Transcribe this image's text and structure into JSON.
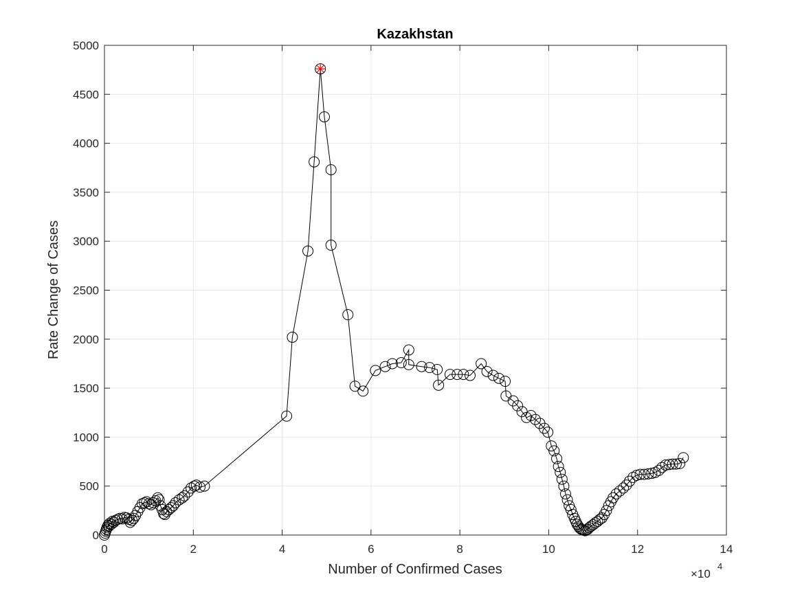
{
  "chart_data": {
    "type": "scatter",
    "title": "Kazakhstan",
    "xlabel": "Number of Confirmed Cases",
    "ylabel": "Rate Change of Cases",
    "x_exponent_label": "×10",
    "x_exponent_power": "4",
    "xlim": [
      0,
      140000
    ],
    "ylim": [
      0,
      5000
    ],
    "x_ticks": [
      0,
      20000,
      40000,
      60000,
      80000,
      100000,
      120000,
      140000
    ],
    "x_tick_labels": [
      "0",
      "2",
      "4",
      "6",
      "8",
      "10",
      "12",
      "14"
    ],
    "y_ticks": [
      0,
      500,
      1000,
      1500,
      2000,
      2500,
      3000,
      3500,
      4000,
      4500,
      5000
    ],
    "y_tick_labels": [
      "0",
      "500",
      "1000",
      "1500",
      "2000",
      "2500",
      "3000",
      "3500",
      "4000",
      "4500",
      "5000"
    ],
    "grid": true,
    "colors": {
      "series": "#000000",
      "highlight": "#ff0000",
      "grid": "#e6e6e6",
      "axis": "#262626"
    },
    "highlight_point": {
      "x": 48600,
      "y": 4760,
      "marker": "asterisk"
    },
    "series": [
      {
        "marker": "circle",
        "points": [
          [
            0,
            0
          ],
          [
            150,
            20
          ],
          [
            300,
            40
          ],
          [
            450,
            60
          ],
          [
            600,
            80
          ],
          [
            800,
            100
          ],
          [
            1000,
            90
          ],
          [
            1200,
            120
          ],
          [
            1500,
            110
          ],
          [
            1800,
            140
          ],
          [
            2100,
            130
          ],
          [
            2500,
            150
          ],
          [
            3000,
            160
          ],
          [
            3500,
            170
          ],
          [
            4000,
            165
          ],
          [
            4500,
            180
          ],
          [
            5000,
            175
          ],
          [
            5500,
            160
          ],
          [
            5800,
            130
          ],
          [
            6200,
            150
          ],
          [
            6600,
            170
          ],
          [
            7000,
            200
          ],
          [
            7500,
            240
          ],
          [
            8000,
            280
          ],
          [
            8500,
            320
          ],
          [
            9000,
            330
          ],
          [
            9500,
            340
          ],
          [
            10000,
            320
          ],
          [
            10500,
            310
          ],
          [
            11000,
            330
          ],
          [
            11500,
            350
          ],
          [
            12000,
            380
          ],
          [
            12300,
            360
          ],
          [
            12600,
            300
          ],
          [
            13000,
            260
          ],
          [
            13300,
            220
          ],
          [
            13600,
            210
          ],
          [
            14000,
            240
          ],
          [
            14500,
            260
          ],
          [
            15000,
            280
          ],
          [
            15500,
            300
          ],
          [
            16000,
            330
          ],
          [
            16800,
            360
          ],
          [
            17500,
            380
          ],
          [
            18000,
            400
          ],
          [
            18800,
            440
          ],
          [
            19500,
            480
          ],
          [
            20200,
            500
          ],
          [
            20700,
            510
          ],
          [
            21500,
            490
          ],
          [
            22500,
            500
          ],
          [
            41000,
            1215
          ],
          [
            42300,
            2020
          ],
          [
            45800,
            2900
          ],
          [
            47200,
            3810
          ],
          [
            48600,
            4760
          ],
          [
            49500,
            4270
          ],
          [
            51000,
            3730
          ],
          [
            51000,
            2960
          ],
          [
            54800,
            2250
          ],
          [
            56400,
            1520
          ],
          [
            58200,
            1470
          ],
          [
            61000,
            1680
          ],
          [
            63200,
            1720
          ],
          [
            64800,
            1750
          ],
          [
            66800,
            1760
          ],
          [
            68500,
            1890
          ],
          [
            68500,
            1740
          ],
          [
            71400,
            1720
          ],
          [
            73200,
            1710
          ],
          [
            74900,
            1690
          ],
          [
            75200,
            1530
          ],
          [
            77800,
            1640
          ],
          [
            79400,
            1640
          ],
          [
            80800,
            1640
          ],
          [
            82300,
            1630
          ],
          [
            84800,
            1750
          ],
          [
            86100,
            1670
          ],
          [
            87500,
            1630
          ],
          [
            88800,
            1600
          ],
          [
            90200,
            1570
          ],
          [
            90400,
            1420
          ],
          [
            92000,
            1370
          ],
          [
            93000,
            1320
          ],
          [
            94000,
            1260
          ],
          [
            95000,
            1200
          ],
          [
            96000,
            1220
          ],
          [
            97000,
            1180
          ],
          [
            98000,
            1140
          ],
          [
            99000,
            1090
          ],
          [
            99800,
            1050
          ],
          [
            100600,
            910
          ],
          [
            101200,
            860
          ],
          [
            101800,
            780
          ],
          [
            102200,
            700
          ],
          [
            102600,
            640
          ],
          [
            103000,
            570
          ],
          [
            103400,
            500
          ],
          [
            103800,
            420
          ],
          [
            104200,
            360
          ],
          [
            104600,
            300
          ],
          [
            105000,
            260
          ],
          [
            105400,
            210
          ],
          [
            105800,
            170
          ],
          [
            106100,
            140
          ],
          [
            106400,
            110
          ],
          [
            106700,
            90
          ],
          [
            107000,
            70
          ],
          [
            107300,
            60
          ],
          [
            107600,
            55
          ],
          [
            107900,
            50
          ],
          [
            108200,
            45
          ],
          [
            108500,
            55
          ],
          [
            108800,
            60
          ],
          [
            109100,
            75
          ],
          [
            109500,
            90
          ],
          [
            110000,
            105
          ],
          [
            110500,
            125
          ],
          [
            111000,
            140
          ],
          [
            111500,
            160
          ],
          [
            112000,
            175
          ],
          [
            112500,
            210
          ],
          [
            113000,
            250
          ],
          [
            113500,
            300
          ],
          [
            114000,
            340
          ],
          [
            114500,
            380
          ],
          [
            115200,
            420
          ],
          [
            116000,
            450
          ],
          [
            116800,
            480
          ],
          [
            117500,
            510
          ],
          [
            118200,
            550
          ],
          [
            119000,
            590
          ],
          [
            119800,
            610
          ],
          [
            120600,
            620
          ],
          [
            121500,
            620
          ],
          [
            122400,
            625
          ],
          [
            123200,
            630
          ],
          [
            124000,
            640
          ],
          [
            124800,
            660
          ],
          [
            125500,
            690
          ],
          [
            126300,
            715
          ],
          [
            127100,
            720
          ],
          [
            127900,
            725
          ],
          [
            128700,
            725
          ],
          [
            129500,
            730
          ],
          [
            130300,
            790
          ]
        ]
      }
    ]
  }
}
